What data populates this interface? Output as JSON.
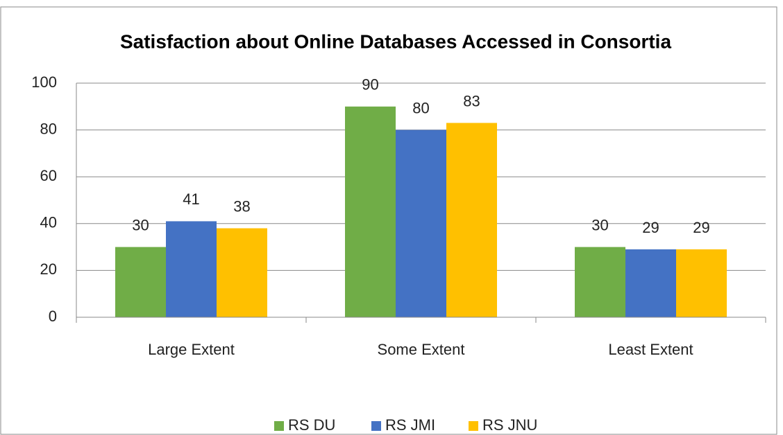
{
  "chart_data": {
    "type": "bar",
    "title": "Satisfaction about Online Databases Accessed in Consortia",
    "categories": [
      "Large Extent",
      "Some Extent",
      "Least Extent"
    ],
    "series": [
      {
        "name": "RS DU",
        "color": "#70ad47",
        "values": [
          30,
          90,
          30
        ]
      },
      {
        "name": "RS JMI",
        "color": "#4472c4",
        "values": [
          41,
          80,
          29
        ]
      },
      {
        "name": "RS JNU",
        "color": "#ffc000",
        "values": [
          38,
          83,
          29
        ]
      }
    ],
    "ylim": [
      0,
      100
    ],
    "yticks": [
      0,
      20,
      40,
      60,
      80,
      100
    ],
    "grid": true,
    "legend": "bottom"
  }
}
